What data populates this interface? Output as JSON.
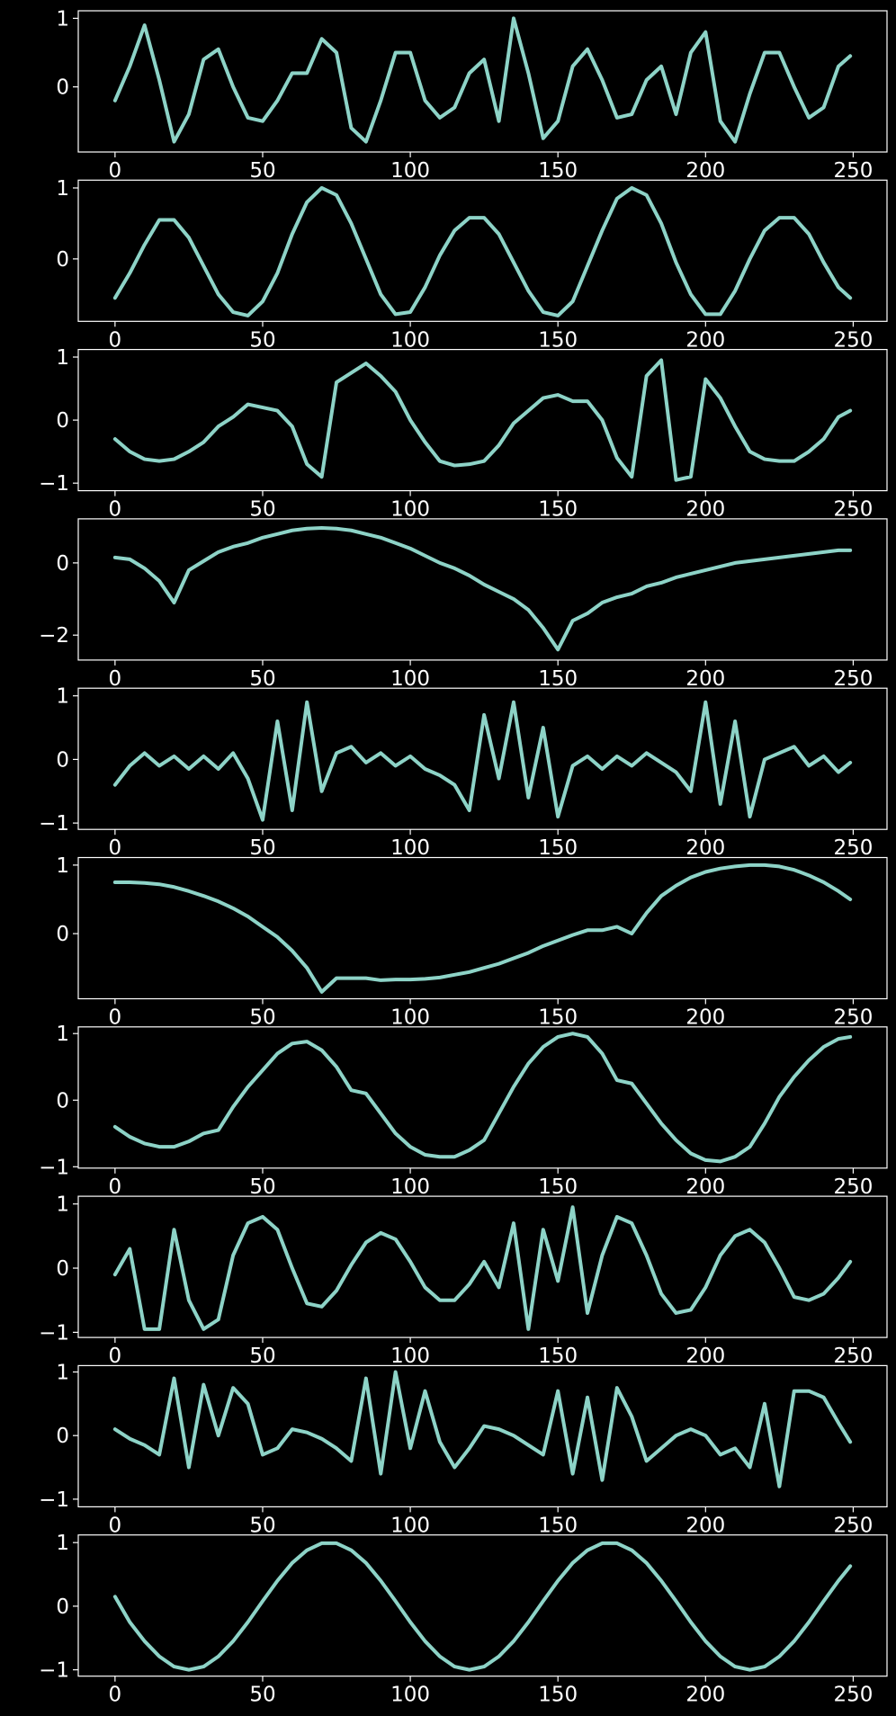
{
  "chart_data": [
    {
      "type": "line",
      "color": "#8dd3c7",
      "xlim": [
        -12.45,
        261.45
      ],
      "xticks": [
        0,
        50,
        100,
        150,
        200,
        250
      ],
      "ylim": [
        -0.95,
        1.11
      ],
      "yticks": [
        0,
        1
      ],
      "x": [
        0,
        5,
        10,
        15,
        20,
        25,
        30,
        35,
        40,
        45,
        50,
        55,
        60,
        65,
        70,
        75,
        80,
        85,
        90,
        95,
        100,
        105,
        110,
        115,
        120,
        125,
        130,
        135,
        140,
        145,
        150,
        155,
        160,
        165,
        170,
        175,
        180,
        185,
        190,
        195,
        200,
        205,
        210,
        215,
        220,
        225,
        230,
        235,
        240,
        245,
        249
      ],
      "values": [
        -0.2,
        0.3,
        0.9,
        0.1,
        -0.8,
        -0.4,
        0.4,
        0.55,
        0.0,
        -0.45,
        -0.5,
        -0.2,
        0.2,
        0.2,
        0.7,
        0.5,
        -0.6,
        -0.8,
        -0.2,
        0.5,
        0.5,
        -0.2,
        -0.45,
        -0.3,
        0.2,
        0.4,
        -0.5,
        1.0,
        0.2,
        -0.75,
        -0.5,
        0.3,
        0.55,
        0.1,
        -0.45,
        -0.4,
        0.1,
        0.3,
        -0.4,
        0.5,
        0.8,
        -0.5,
        -0.8,
        -0.1,
        0.5,
        0.5,
        0.0,
        -0.45,
        -0.3,
        0.3,
        0.45
      ]
    },
    {
      "type": "line",
      "color": "#8dd3c7",
      "xlim": [
        -12.45,
        261.45
      ],
      "xticks": [
        0,
        50,
        100,
        150,
        200,
        250
      ],
      "ylim": [
        -0.88,
        1.11
      ],
      "yticks": [
        0,
        1
      ],
      "x": [
        0,
        5,
        10,
        15,
        20,
        25,
        30,
        35,
        40,
        45,
        50,
        55,
        60,
        65,
        70,
        75,
        80,
        85,
        90,
        95,
        100,
        105,
        110,
        115,
        120,
        125,
        130,
        135,
        140,
        145,
        150,
        155,
        160,
        165,
        170,
        175,
        180,
        185,
        190,
        195,
        200,
        205,
        210,
        215,
        220,
        225,
        230,
        235,
        240,
        245,
        249
      ],
      "values": [
        -0.55,
        -0.2,
        0.2,
        0.55,
        0.55,
        0.3,
        -0.1,
        -0.5,
        -0.75,
        -0.8,
        -0.6,
        -0.2,
        0.35,
        0.8,
        1.0,
        0.9,
        0.5,
        0.0,
        -0.5,
        -0.78,
        -0.75,
        -0.4,
        0.05,
        0.4,
        0.58,
        0.58,
        0.35,
        -0.05,
        -0.45,
        -0.75,
        -0.8,
        -0.6,
        -0.1,
        0.4,
        0.85,
        1.0,
        0.9,
        0.5,
        -0.05,
        -0.5,
        -0.78,
        -0.78,
        -0.45,
        0.0,
        0.4,
        0.58,
        0.58,
        0.35,
        -0.05,
        -0.4,
        -0.55
      ]
    },
    {
      "type": "line",
      "color": "#8dd3c7",
      "xlim": [
        -12.45,
        261.45
      ],
      "xticks": [
        0,
        50,
        100,
        150,
        200,
        250
      ],
      "ylim": [
        -1.12,
        1.12
      ],
      "yticks": [
        {
          "value": -1,
          "label": "−1"
        },
        0,
        1
      ],
      "x": [
        0,
        5,
        10,
        15,
        20,
        25,
        30,
        35,
        40,
        45,
        50,
        55,
        60,
        65,
        70,
        75,
        80,
        85,
        90,
        95,
        100,
        105,
        110,
        115,
        120,
        125,
        130,
        135,
        140,
        145,
        150,
        155,
        160,
        165,
        170,
        175,
        180,
        185,
        190,
        195,
        200,
        205,
        210,
        215,
        220,
        225,
        230,
        235,
        240,
        245,
        249
      ],
      "values": [
        -0.3,
        -0.5,
        -0.62,
        -0.65,
        -0.62,
        -0.5,
        -0.35,
        -0.1,
        0.05,
        0.25,
        0.2,
        0.15,
        -0.1,
        -0.7,
        -0.9,
        0.6,
        0.75,
        0.9,
        0.7,
        0.45,
        0.0,
        -0.35,
        -0.65,
        -0.72,
        -0.7,
        -0.65,
        -0.4,
        -0.05,
        0.15,
        0.35,
        0.4,
        0.3,
        0.3,
        0.0,
        -0.6,
        -0.9,
        0.7,
        0.95,
        -0.95,
        -0.9,
        0.65,
        0.35,
        -0.1,
        -0.5,
        -0.62,
        -0.65,
        -0.65,
        -0.5,
        -0.3,
        0.05,
        0.15
      ]
    },
    {
      "type": "line",
      "color": "#8dd3c7",
      "xlim": [
        -12.45,
        261.45
      ],
      "xticks": [
        0,
        50,
        100,
        150,
        200,
        250
      ],
      "ylim": [
        -2.69,
        1.22
      ],
      "yticks": [
        {
          "value": -2,
          "label": "−2"
        },
        0
      ],
      "x": [
        0,
        5,
        10,
        15,
        20,
        25,
        30,
        35,
        40,
        45,
        50,
        55,
        60,
        65,
        70,
        75,
        80,
        85,
        90,
        95,
        100,
        105,
        110,
        115,
        120,
        125,
        130,
        135,
        140,
        145,
        150,
        155,
        160,
        165,
        170,
        175,
        180,
        185,
        190,
        195,
        200,
        205,
        210,
        215,
        220,
        225,
        230,
        235,
        240,
        245,
        249
      ],
      "values": [
        0.15,
        0.1,
        -0.15,
        -0.5,
        -1.1,
        -0.2,
        0.05,
        0.3,
        0.45,
        0.55,
        0.7,
        0.8,
        0.9,
        0.95,
        0.97,
        0.95,
        0.9,
        0.8,
        0.7,
        0.55,
        0.4,
        0.2,
        0.0,
        -0.15,
        -0.35,
        -0.6,
        -0.8,
        -1.0,
        -1.3,
        -1.8,
        -2.4,
        -1.6,
        -1.4,
        -1.1,
        -0.95,
        -0.85,
        -0.65,
        -0.55,
        -0.4,
        -0.3,
        -0.2,
        -0.1,
        0.0,
        0.05,
        0.1,
        0.15,
        0.2,
        0.25,
        0.3,
        0.35,
        0.35
      ]
    },
    {
      "type": "line",
      "color": "#8dd3c7",
      "xlim": [
        -12.45,
        261.45
      ],
      "xticks": [
        0,
        50,
        100,
        150,
        200,
        250
      ],
      "ylim": [
        -1.1,
        1.12
      ],
      "yticks": [
        {
          "value": -1,
          "label": "−1"
        },
        0,
        1
      ],
      "x": [
        0,
        5,
        10,
        15,
        20,
        25,
        30,
        35,
        40,
        45,
        50,
        55,
        60,
        65,
        70,
        75,
        80,
        85,
        90,
        95,
        100,
        105,
        110,
        115,
        120,
        125,
        130,
        135,
        140,
        145,
        150,
        155,
        160,
        165,
        170,
        175,
        180,
        185,
        190,
        195,
        200,
        205,
        210,
        215,
        220,
        225,
        230,
        235,
        240,
        245,
        249
      ],
      "values": [
        -0.4,
        -0.1,
        0.1,
        -0.1,
        0.05,
        -0.15,
        0.05,
        -0.15,
        0.1,
        -0.3,
        -0.95,
        0.6,
        -0.8,
        0.9,
        -0.5,
        0.1,
        0.2,
        -0.05,
        0.1,
        -0.1,
        0.05,
        -0.15,
        -0.25,
        -0.4,
        -0.8,
        0.7,
        -0.3,
        0.9,
        -0.6,
        0.5,
        -0.9,
        -0.1,
        0.05,
        -0.15,
        0.05,
        -0.1,
        0.1,
        -0.05,
        -0.2,
        -0.5,
        0.9,
        -0.7,
        0.6,
        -0.9,
        0.0,
        0.1,
        0.2,
        -0.1,
        0.05,
        -0.2,
        -0.05
      ]
    },
    {
      "type": "line",
      "color": "#8dd3c7",
      "xlim": [
        -12.45,
        261.45
      ],
      "xticks": [
        0,
        50,
        100,
        150,
        200,
        250
      ],
      "ylim": [
        -0.95,
        1.11
      ],
      "yticks": [
        0,
        1
      ],
      "x": [
        0,
        5,
        10,
        15,
        20,
        25,
        30,
        35,
        40,
        45,
        50,
        55,
        60,
        65,
        70,
        75,
        80,
        85,
        90,
        95,
        100,
        105,
        110,
        115,
        120,
        125,
        130,
        135,
        140,
        145,
        150,
        155,
        160,
        165,
        170,
        175,
        180,
        185,
        190,
        195,
        200,
        205,
        210,
        215,
        220,
        225,
        230,
        235,
        240,
        245,
        249
      ],
      "values": [
        0.75,
        0.75,
        0.74,
        0.72,
        0.68,
        0.62,
        0.55,
        0.47,
        0.37,
        0.25,
        0.1,
        -0.05,
        -0.25,
        -0.5,
        -0.85,
        -0.65,
        -0.65,
        -0.65,
        -0.68,
        -0.67,
        -0.67,
        -0.66,
        -0.64,
        -0.6,
        -0.56,
        -0.5,
        -0.44,
        -0.36,
        -0.28,
        -0.18,
        -0.1,
        -0.02,
        0.05,
        0.05,
        0.1,
        0.0,
        0.3,
        0.55,
        0.7,
        0.82,
        0.9,
        0.95,
        0.98,
        1.0,
        1.0,
        0.98,
        0.93,
        0.85,
        0.75,
        0.62,
        0.5
      ]
    },
    {
      "type": "line",
      "color": "#8dd3c7",
      "xlim": [
        -12.45,
        261.45
      ],
      "xticks": [
        0,
        50,
        100,
        150,
        200,
        250
      ],
      "ylim": [
        -1.02,
        1.1
      ],
      "yticks": [
        {
          "value": -1,
          "label": "−1"
        },
        0,
        1
      ],
      "x": [
        0,
        5,
        10,
        15,
        20,
        25,
        30,
        35,
        40,
        45,
        50,
        55,
        60,
        65,
        70,
        75,
        80,
        85,
        90,
        95,
        100,
        105,
        110,
        115,
        120,
        125,
        130,
        135,
        140,
        145,
        150,
        155,
        160,
        165,
        170,
        175,
        180,
        185,
        190,
        195,
        200,
        205,
        210,
        215,
        220,
        225,
        230,
        235,
        240,
        245,
        249
      ],
      "values": [
        -0.4,
        -0.55,
        -0.65,
        -0.7,
        -0.7,
        -0.62,
        -0.5,
        -0.45,
        -0.1,
        0.2,
        0.45,
        0.7,
        0.85,
        0.88,
        0.75,
        0.5,
        0.15,
        0.1,
        -0.2,
        -0.5,
        -0.7,
        -0.82,
        -0.85,
        -0.85,
        -0.75,
        -0.6,
        -0.2,
        0.2,
        0.55,
        0.8,
        0.95,
        1.0,
        0.95,
        0.7,
        0.3,
        0.25,
        -0.05,
        -0.35,
        -0.6,
        -0.8,
        -0.9,
        -0.92,
        -0.85,
        -0.7,
        -0.35,
        0.05,
        0.35,
        0.6,
        0.8,
        0.92,
        0.95
      ]
    },
    {
      "type": "line",
      "color": "#8dd3c7",
      "xlim": [
        -12.45,
        261.45
      ],
      "xticks": [
        0,
        50,
        100,
        150,
        200,
        250
      ],
      "ylim": [
        -1.08,
        1.12
      ],
      "yticks": [
        {
          "value": -1,
          "label": "−1"
        },
        0,
        1
      ],
      "x": [
        0,
        5,
        10,
        15,
        20,
        25,
        30,
        35,
        40,
        45,
        50,
        55,
        60,
        65,
        70,
        75,
        80,
        85,
        90,
        95,
        100,
        105,
        110,
        115,
        120,
        125,
        130,
        135,
        140,
        145,
        150,
        155,
        160,
        165,
        170,
        175,
        180,
        185,
        190,
        195,
        200,
        205,
        210,
        215,
        220,
        225,
        230,
        235,
        240,
        245,
        249
      ],
      "values": [
        -0.1,
        0.3,
        -0.95,
        -0.95,
        0.6,
        -0.5,
        -0.95,
        -0.8,
        0.2,
        0.7,
        0.8,
        0.6,
        0.0,
        -0.55,
        -0.6,
        -0.35,
        0.05,
        0.4,
        0.55,
        0.45,
        0.1,
        -0.3,
        -0.5,
        -0.5,
        -0.25,
        0.1,
        -0.3,
        0.7,
        -0.95,
        0.6,
        -0.2,
        0.95,
        -0.7,
        0.2,
        0.8,
        0.7,
        0.2,
        -0.4,
        -0.7,
        -0.65,
        -0.3,
        0.2,
        0.5,
        0.6,
        0.4,
        0.0,
        -0.45,
        -0.5,
        -0.4,
        -0.15,
        0.1
      ]
    },
    {
      "type": "line",
      "color": "#8dd3c7",
      "xlim": [
        -12.45,
        261.45
      ],
      "xticks": [
        0,
        50,
        100,
        150,
        200,
        250
      ],
      "ylim": [
        -1.12,
        1.1
      ],
      "yticks": [
        {
          "value": -1,
          "label": "−1"
        },
        0,
        1
      ],
      "x": [
        0,
        5,
        10,
        15,
        20,
        25,
        30,
        35,
        40,
        45,
        50,
        55,
        60,
        65,
        70,
        75,
        80,
        85,
        90,
        95,
        100,
        105,
        110,
        115,
        120,
        125,
        130,
        135,
        140,
        145,
        150,
        155,
        160,
        165,
        170,
        175,
        180,
        185,
        190,
        195,
        200,
        205,
        210,
        215,
        220,
        225,
        230,
        235,
        240,
        245,
        249
      ],
      "values": [
        0.1,
        -0.05,
        -0.15,
        -0.3,
        0.9,
        -0.5,
        0.8,
        0.0,
        0.75,
        0.5,
        -0.3,
        -0.2,
        0.1,
        0.05,
        -0.05,
        -0.2,
        -0.4,
        0.9,
        -0.6,
        1.0,
        -0.2,
        0.7,
        -0.1,
        -0.5,
        -0.2,
        0.15,
        0.1,
        0.0,
        -0.15,
        -0.3,
        0.7,
        -0.6,
        0.6,
        -0.7,
        0.75,
        0.3,
        -0.4,
        -0.2,
        0.0,
        0.1,
        0.0,
        -0.3,
        -0.2,
        -0.5,
        0.5,
        -0.8,
        0.7,
        0.7,
        0.6,
        0.2,
        -0.1
      ]
    },
    {
      "type": "line",
      "color": "#8dd3c7",
      "xlim": [
        -12.45,
        261.45
      ],
      "xticks": [
        0,
        50,
        100,
        150,
        200,
        250
      ],
      "ylim": [
        -1.1,
        1.12
      ],
      "yticks": [
        {
          "value": -1,
          "label": "−1"
        },
        0,
        1
      ],
      "x": [
        0,
        5,
        10,
        15,
        20,
        25,
        30,
        35,
        40,
        45,
        50,
        55,
        60,
        65,
        70,
        75,
        80,
        85,
        90,
        95,
        100,
        105,
        110,
        115,
        120,
        125,
        130,
        135,
        140,
        145,
        150,
        155,
        160,
        165,
        170,
        175,
        180,
        185,
        190,
        195,
        200,
        205,
        210,
        215,
        220,
        225,
        230,
        235,
        240,
        245,
        249
      ],
      "values": [
        0.15,
        -0.25,
        -0.55,
        -0.79,
        -0.95,
        -1.0,
        -0.95,
        -0.79,
        -0.55,
        -0.25,
        0.08,
        0.4,
        0.68,
        0.88,
        0.99,
        0.99,
        0.88,
        0.68,
        0.4,
        0.08,
        -0.25,
        -0.55,
        -0.79,
        -0.95,
        -1.0,
        -0.95,
        -0.79,
        -0.55,
        -0.25,
        0.08,
        0.4,
        0.68,
        0.88,
        0.99,
        0.99,
        0.88,
        0.68,
        0.4,
        0.08,
        -0.25,
        -0.55,
        -0.79,
        -0.95,
        -1.0,
        -0.95,
        -0.79,
        -0.55,
        -0.25,
        0.08,
        0.4,
        0.63
      ]
    }
  ]
}
